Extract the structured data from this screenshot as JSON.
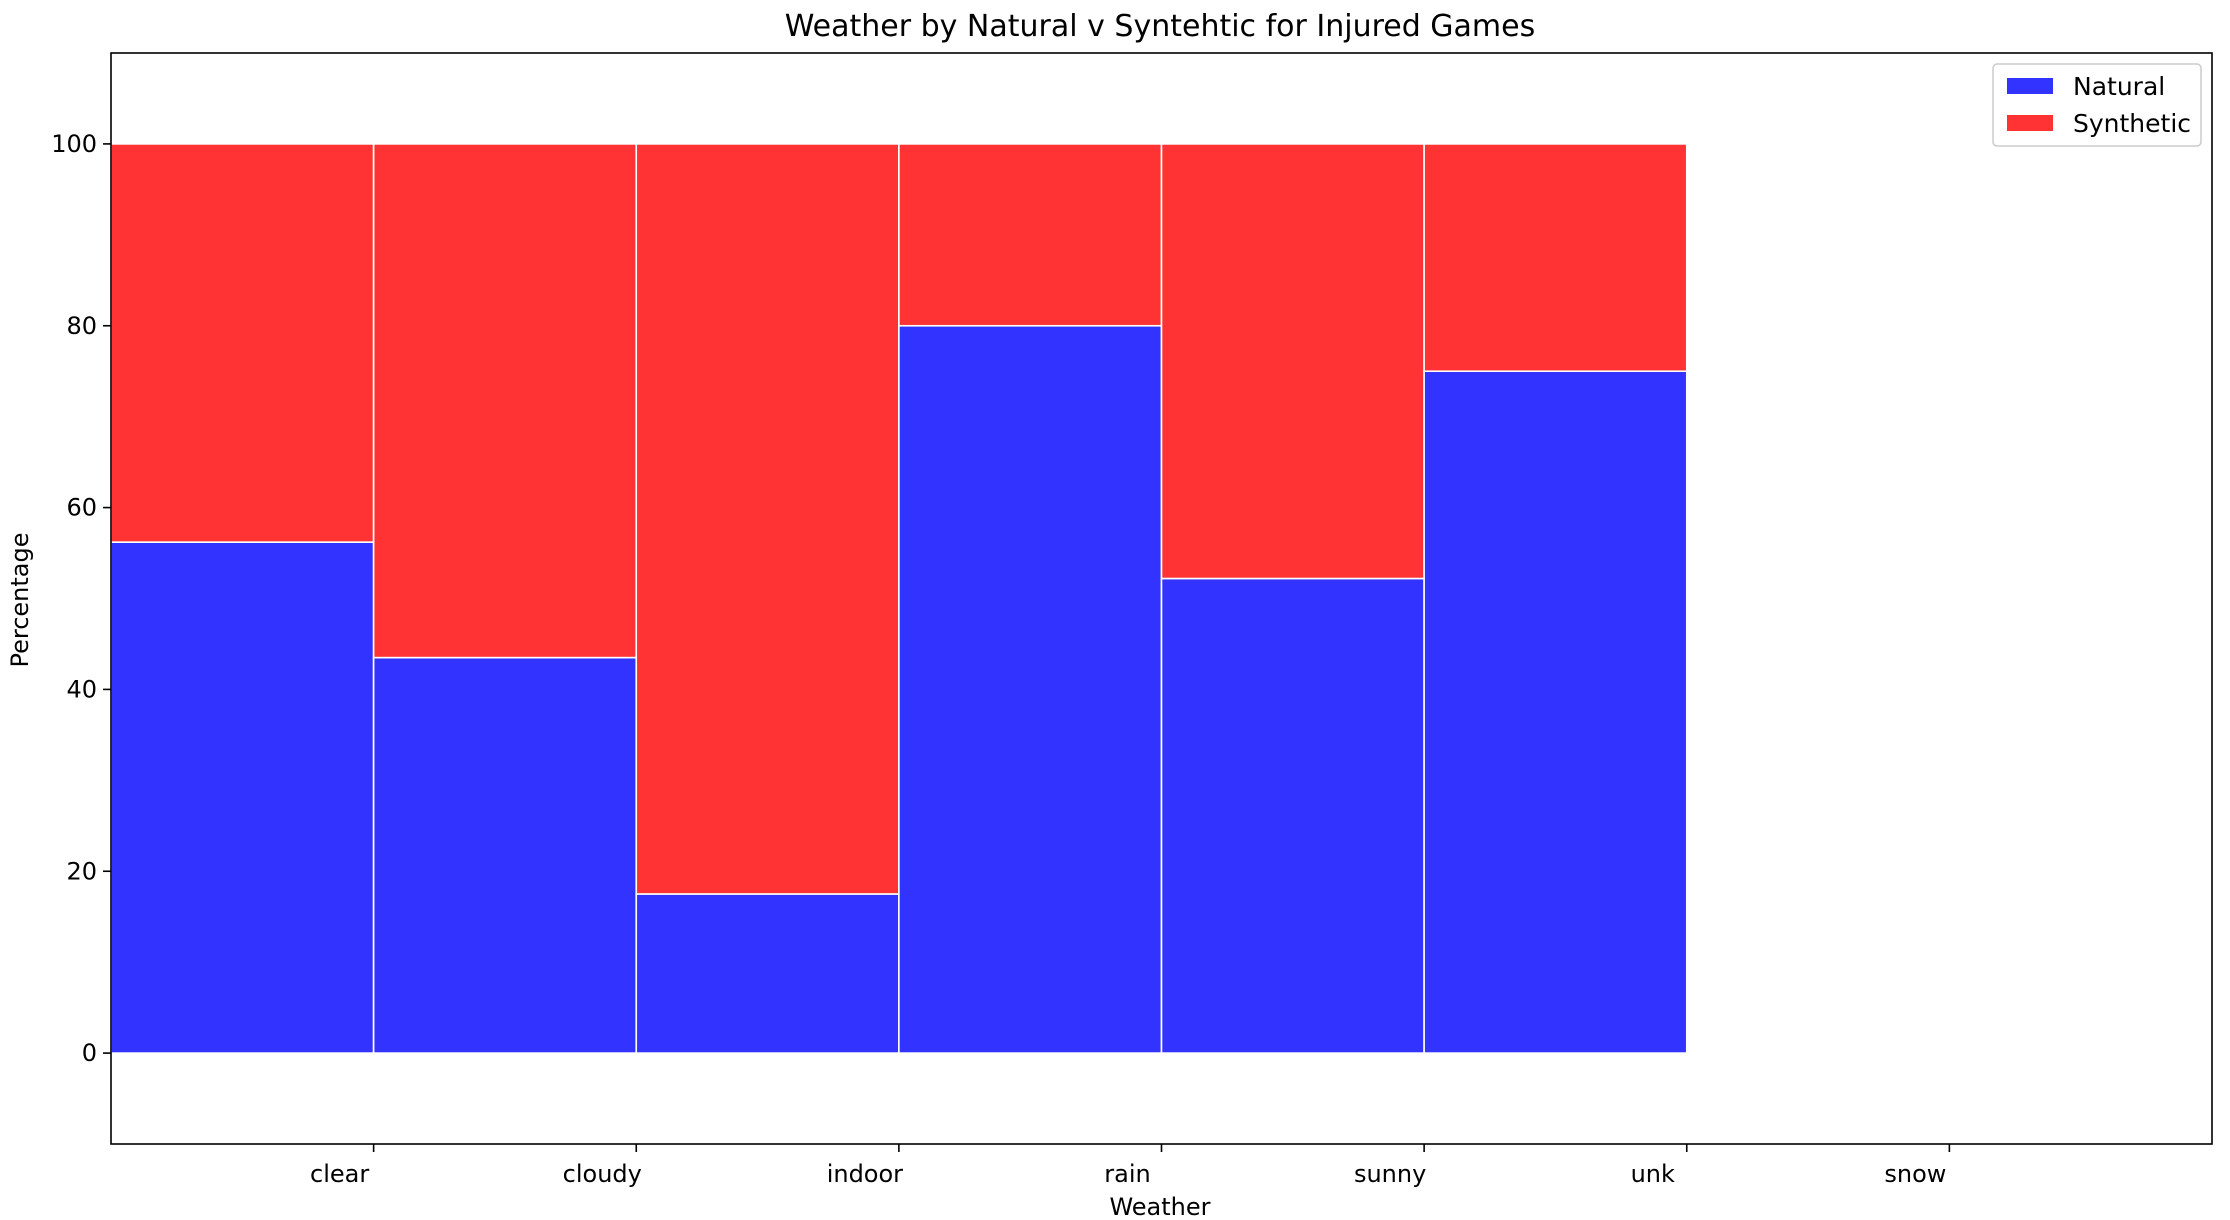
{
  "chart_data": {
    "type": "bar",
    "stacked": true,
    "title": "Weather by Natural v Syntehtic for Injured Games",
    "xlabel": "Weather",
    "ylabel": "Percentage",
    "categories": [
      "clear",
      "cloudy",
      "indoor",
      "rain",
      "sunny",
      "unk",
      "snow"
    ],
    "series": [
      {
        "name": "Natural",
        "color": "#3333ff",
        "values": [
          56.2,
          43.5,
          17.5,
          80.0,
          52.2,
          75.0,
          null
        ]
      },
      {
        "name": "Synthetic",
        "color": "#ff3333",
        "values": [
          43.8,
          56.5,
          82.5,
          20.0,
          47.8,
          25.0,
          null
        ]
      }
    ],
    "ylim": [
      -10,
      110
    ],
    "yticks": [
      0,
      20,
      40,
      60,
      80,
      100
    ],
    "grid": false,
    "legend": "top-right"
  }
}
